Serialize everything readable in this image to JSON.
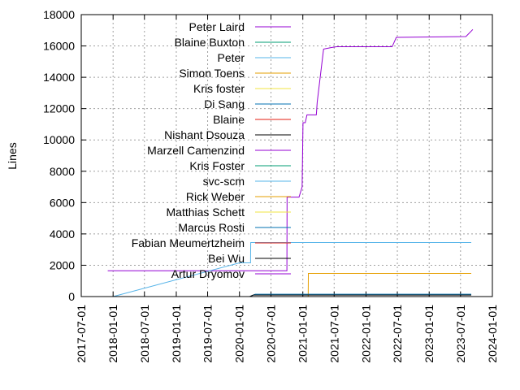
{
  "chart_data": {
    "type": "line",
    "title": "",
    "xlabel": "",
    "ylabel": "Lines",
    "xlim": [
      "2017-07-01",
      "2024-01-01"
    ],
    "ylim": [
      0,
      18000
    ],
    "x_ticks": [
      "2017-07-01",
      "2018-01-01",
      "2018-07-01",
      "2019-01-01",
      "2019-07-01",
      "2020-01-01",
      "2020-07-01",
      "2021-01-01",
      "2021-07-01",
      "2022-01-01",
      "2022-07-01",
      "2023-01-01",
      "2023-07-01",
      "2024-01-01"
    ],
    "y_ticks": [
      0,
      2000,
      4000,
      6000,
      8000,
      10000,
      12000,
      14000,
      16000,
      18000
    ],
    "grid": true,
    "legend_position": "top-left",
    "series": [
      {
        "name": "Peter Laird",
        "color": "#9400d3",
        "points": [
          [
            "2017-12-01",
            1650
          ],
          [
            "2020-10-01",
            1650
          ],
          [
            "2020-10-02",
            6350
          ],
          [
            "2020-12-10",
            6350
          ],
          [
            "2020-12-28",
            7000
          ],
          [
            "2021-01-02",
            11100
          ],
          [
            "2021-01-15",
            11100
          ],
          [
            "2021-01-25",
            11600
          ],
          [
            "2021-03-20",
            11600
          ],
          [
            "2021-03-25",
            12400
          ],
          [
            "2021-04-20",
            14800
          ],
          [
            "2021-05-01",
            15800
          ],
          [
            "2021-06-15",
            15900
          ],
          [
            "2021-07-15",
            15950
          ],
          [
            "2022-06-01",
            15950
          ],
          [
            "2022-06-25",
            16550
          ],
          [
            "2023-08-01",
            16600
          ],
          [
            "2023-09-10",
            17050
          ]
        ]
      },
      {
        "name": "Blaine Buxton",
        "color": "#009e73",
        "points": [
          [
            "2020-03-01",
            0
          ],
          [
            "2023-09-01",
            0
          ]
        ]
      },
      {
        "name": "Peter",
        "color": "#56b4e9",
        "points": [
          [
            "2018-01-01",
            0
          ],
          [
            "2020-01-01",
            2150
          ],
          [
            "2020-03-05",
            2150
          ],
          [
            "2020-03-06",
            3450
          ],
          [
            "2023-09-01",
            3450
          ]
        ]
      },
      {
        "name": "Simon Toens",
        "color": "#e69f00",
        "points": [
          [
            "2020-05-01",
            0
          ],
          [
            "2021-02-01",
            0
          ],
          [
            "2021-02-02",
            1480
          ],
          [
            "2023-09-01",
            1480
          ]
        ]
      },
      {
        "name": "Kris foster",
        "color": "#f0e442",
        "points": [
          [
            "2020-03-01",
            0
          ],
          [
            "2023-09-01",
            0
          ]
        ]
      },
      {
        "name": "Di Sang",
        "color": "#0072b2",
        "points": [
          [
            "2020-03-01",
            0
          ],
          [
            "2020-04-01",
            150
          ],
          [
            "2023-09-01",
            150
          ]
        ]
      },
      {
        "name": "Blaine",
        "color": "#e51e10",
        "points": [
          [
            "2020-03-01",
            0
          ],
          [
            "2023-09-01",
            0
          ]
        ]
      },
      {
        "name": "Nishant Dsouza",
        "color": "#000000",
        "points": [
          [
            "2020-03-01",
            0
          ],
          [
            "2020-03-20",
            100
          ],
          [
            "2023-09-01",
            100
          ]
        ]
      },
      {
        "name": "Marzell Camenzind",
        "color": "#9400d3",
        "points": [
          [
            "2020-03-01",
            0
          ],
          [
            "2023-09-01",
            0
          ]
        ]
      },
      {
        "name": "Kris Foster",
        "color": "#009e73",
        "points": [
          [
            "2020-03-01",
            0
          ],
          [
            "2023-09-01",
            0
          ]
        ]
      },
      {
        "name": "svc-scm",
        "color": "#56b4e9",
        "points": [
          [
            "2020-03-01",
            0
          ],
          [
            "2023-09-01",
            0
          ]
        ]
      },
      {
        "name": "Rick Weber",
        "color": "#e69f00",
        "points": [
          [
            "2020-03-01",
            0
          ],
          [
            "2023-09-01",
            0
          ]
        ]
      },
      {
        "name": "Matthias Schett",
        "color": "#f0e442",
        "points": [
          [
            "2020-03-01",
            0
          ],
          [
            "2023-09-01",
            0
          ]
        ]
      },
      {
        "name": "Marcus Rosti",
        "color": "#0072b2",
        "points": [
          [
            "2020-03-01",
            0
          ],
          [
            "2023-09-01",
            0
          ]
        ]
      },
      {
        "name": "Fabian Meumertzheim",
        "color": "#e51e10",
        "points": [
          [
            "2020-03-01",
            0
          ],
          [
            "2023-09-01",
            0
          ]
        ]
      },
      {
        "name": "Bei Wu",
        "color": "#000000",
        "points": [
          [
            "2020-03-01",
            0
          ],
          [
            "2023-09-01",
            0
          ]
        ]
      },
      {
        "name": "Artur Dryomov",
        "color": "#9400d3",
        "points": [
          [
            "2020-03-01",
            0
          ],
          [
            "2023-09-01",
            0
          ]
        ]
      }
    ]
  }
}
